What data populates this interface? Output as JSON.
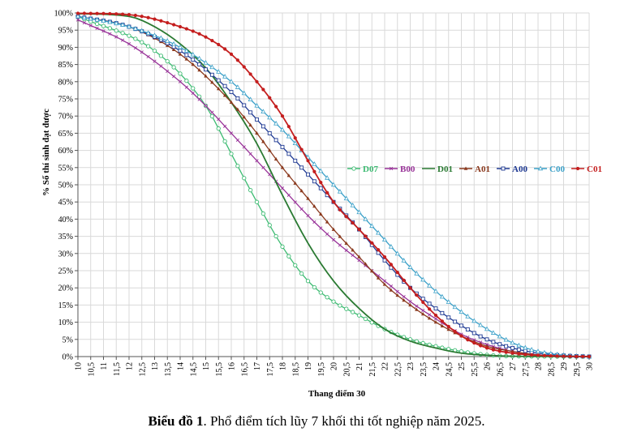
{
  "chart_data": {
    "type": "line",
    "title": "",
    "xlabel": "Thang điểm 30",
    "ylabel": "% Số thí sinh đạt được",
    "xlim": [
      10,
      30
    ],
    "ylim": [
      0,
      100
    ],
    "x_step": 0.25,
    "x_tick_labels": [
      "10",
      "10,5",
      "11",
      "11,5",
      "12",
      "12,5",
      "13",
      "13,5",
      "14",
      "14,5",
      "15",
      "15,5",
      "16",
      "16,5",
      "17",
      "17,5",
      "18",
      "18,5",
      "19",
      "19,5",
      "20",
      "20,5",
      "21",
      "21,5",
      "22",
      "22,5",
      "23",
      "23,5",
      "24",
      "24,5",
      "25",
      "25,5",
      "26",
      "26,5",
      "27",
      "27,5",
      "28",
      "28,5",
      "29",
      "29,5",
      "30"
    ],
    "y_tick_labels": [
      "0%",
      "5%",
      "10%",
      "15%",
      "20%",
      "25%",
      "30%",
      "35%",
      "40%",
      "45%",
      "50%",
      "55%",
      "60%",
      "65%",
      "70%",
      "75%",
      "80%",
      "85%",
      "90%",
      "95%",
      "100%"
    ],
    "legend_position": "center-right",
    "series": [
      {
        "name": "D07",
        "color": "#3dbb72",
        "marker": "circle-open",
        "anchors_x": [
          10,
          13,
          15,
          16,
          17,
          18,
          19,
          20,
          21,
          22,
          23,
          24,
          25,
          26,
          27,
          30
        ],
        "anchors_y": [
          99,
          89,
          73,
          59,
          45,
          32,
          22,
          16,
          12,
          8,
          5,
          3,
          1.5,
          0.5,
          0.1,
          0
        ]
      },
      {
        "name": "B00",
        "color": "#993399",
        "marker": "x",
        "anchors_x": [
          10,
          12,
          14,
          15,
          16,
          17,
          18,
          19,
          20,
          21,
          22,
          23,
          24,
          25,
          26,
          27,
          28,
          30
        ],
        "anchors_y": [
          98,
          91,
          80,
          73,
          65,
          57,
          49,
          41,
          34,
          28,
          22,
          16,
          11,
          6.5,
          3.5,
          1.5,
          0.5,
          0
        ]
      },
      {
        "name": "D01",
        "color": "#2a7a32",
        "marker": "none",
        "anchors_x": [
          10,
          12,
          13,
          14,
          15,
          16,
          17,
          18,
          19,
          20,
          21,
          22,
          23,
          24,
          25,
          26,
          27,
          30
        ],
        "anchors_y": [
          99.8,
          99,
          96,
          91,
          84,
          74,
          62,
          47,
          33,
          22,
          14,
          8,
          4.5,
          2.5,
          1,
          0.4,
          0.1,
          0
        ]
      },
      {
        "name": "A01",
        "color": "#8b3a1e",
        "marker": "triangle",
        "anchors_x": [
          10,
          12,
          14,
          16,
          17,
          18,
          19,
          20,
          21,
          22,
          23,
          24,
          25,
          26,
          27,
          28,
          29,
          30
        ],
        "anchors_y": [
          99,
          96,
          88,
          74,
          65,
          55,
          46,
          37,
          29,
          21,
          15,
          10,
          6,
          3,
          1.5,
          0.5,
          0.1,
          0
        ]
      },
      {
        "name": "A00",
        "color": "#1f3a93",
        "marker": "square-open",
        "anchors_x": [
          10,
          12,
          14,
          16,
          17,
          18,
          19,
          20,
          21,
          22,
          23,
          24,
          25,
          26,
          27,
          28,
          29,
          30
        ],
        "anchors_y": [
          99,
          96,
          89,
          77,
          69,
          61,
          53,
          45,
          37,
          28,
          20,
          14,
          9,
          5,
          2.5,
          1,
          0.3,
          0
        ]
      },
      {
        "name": "C00",
        "color": "#3aa0c8",
        "marker": "triangle-open",
        "anchors_x": [
          10,
          12,
          14,
          16,
          17,
          18,
          19,
          20,
          21,
          22,
          23,
          24,
          25,
          26,
          27,
          28,
          29,
          30
        ],
        "anchors_y": [
          99,
          96,
          90,
          80,
          73,
          66,
          58,
          50,
          42,
          34,
          26,
          19,
          13,
          8,
          4,
          1.5,
          0.4,
          0
        ]
      },
      {
        "name": "C01",
        "color": "#c41e1e",
        "marker": "dot",
        "anchors_x": [
          10,
          12,
          14,
          15,
          16,
          17,
          18,
          19,
          20,
          21,
          22,
          23,
          24,
          25,
          26,
          27,
          28,
          29,
          30
        ],
        "anchors_y": [
          99.9,
          99.5,
          96,
          93,
          88,
          80,
          70,
          57,
          45,
          37,
          29,
          20,
          12,
          6,
          2.5,
          1,
          0.4,
          0.1,
          0
        ]
      }
    ]
  },
  "caption": {
    "label": "Biểu đồ 1",
    "text": ". Phổ điểm tích lũy 7 khối thi tốt nghiệp năm 2025."
  }
}
